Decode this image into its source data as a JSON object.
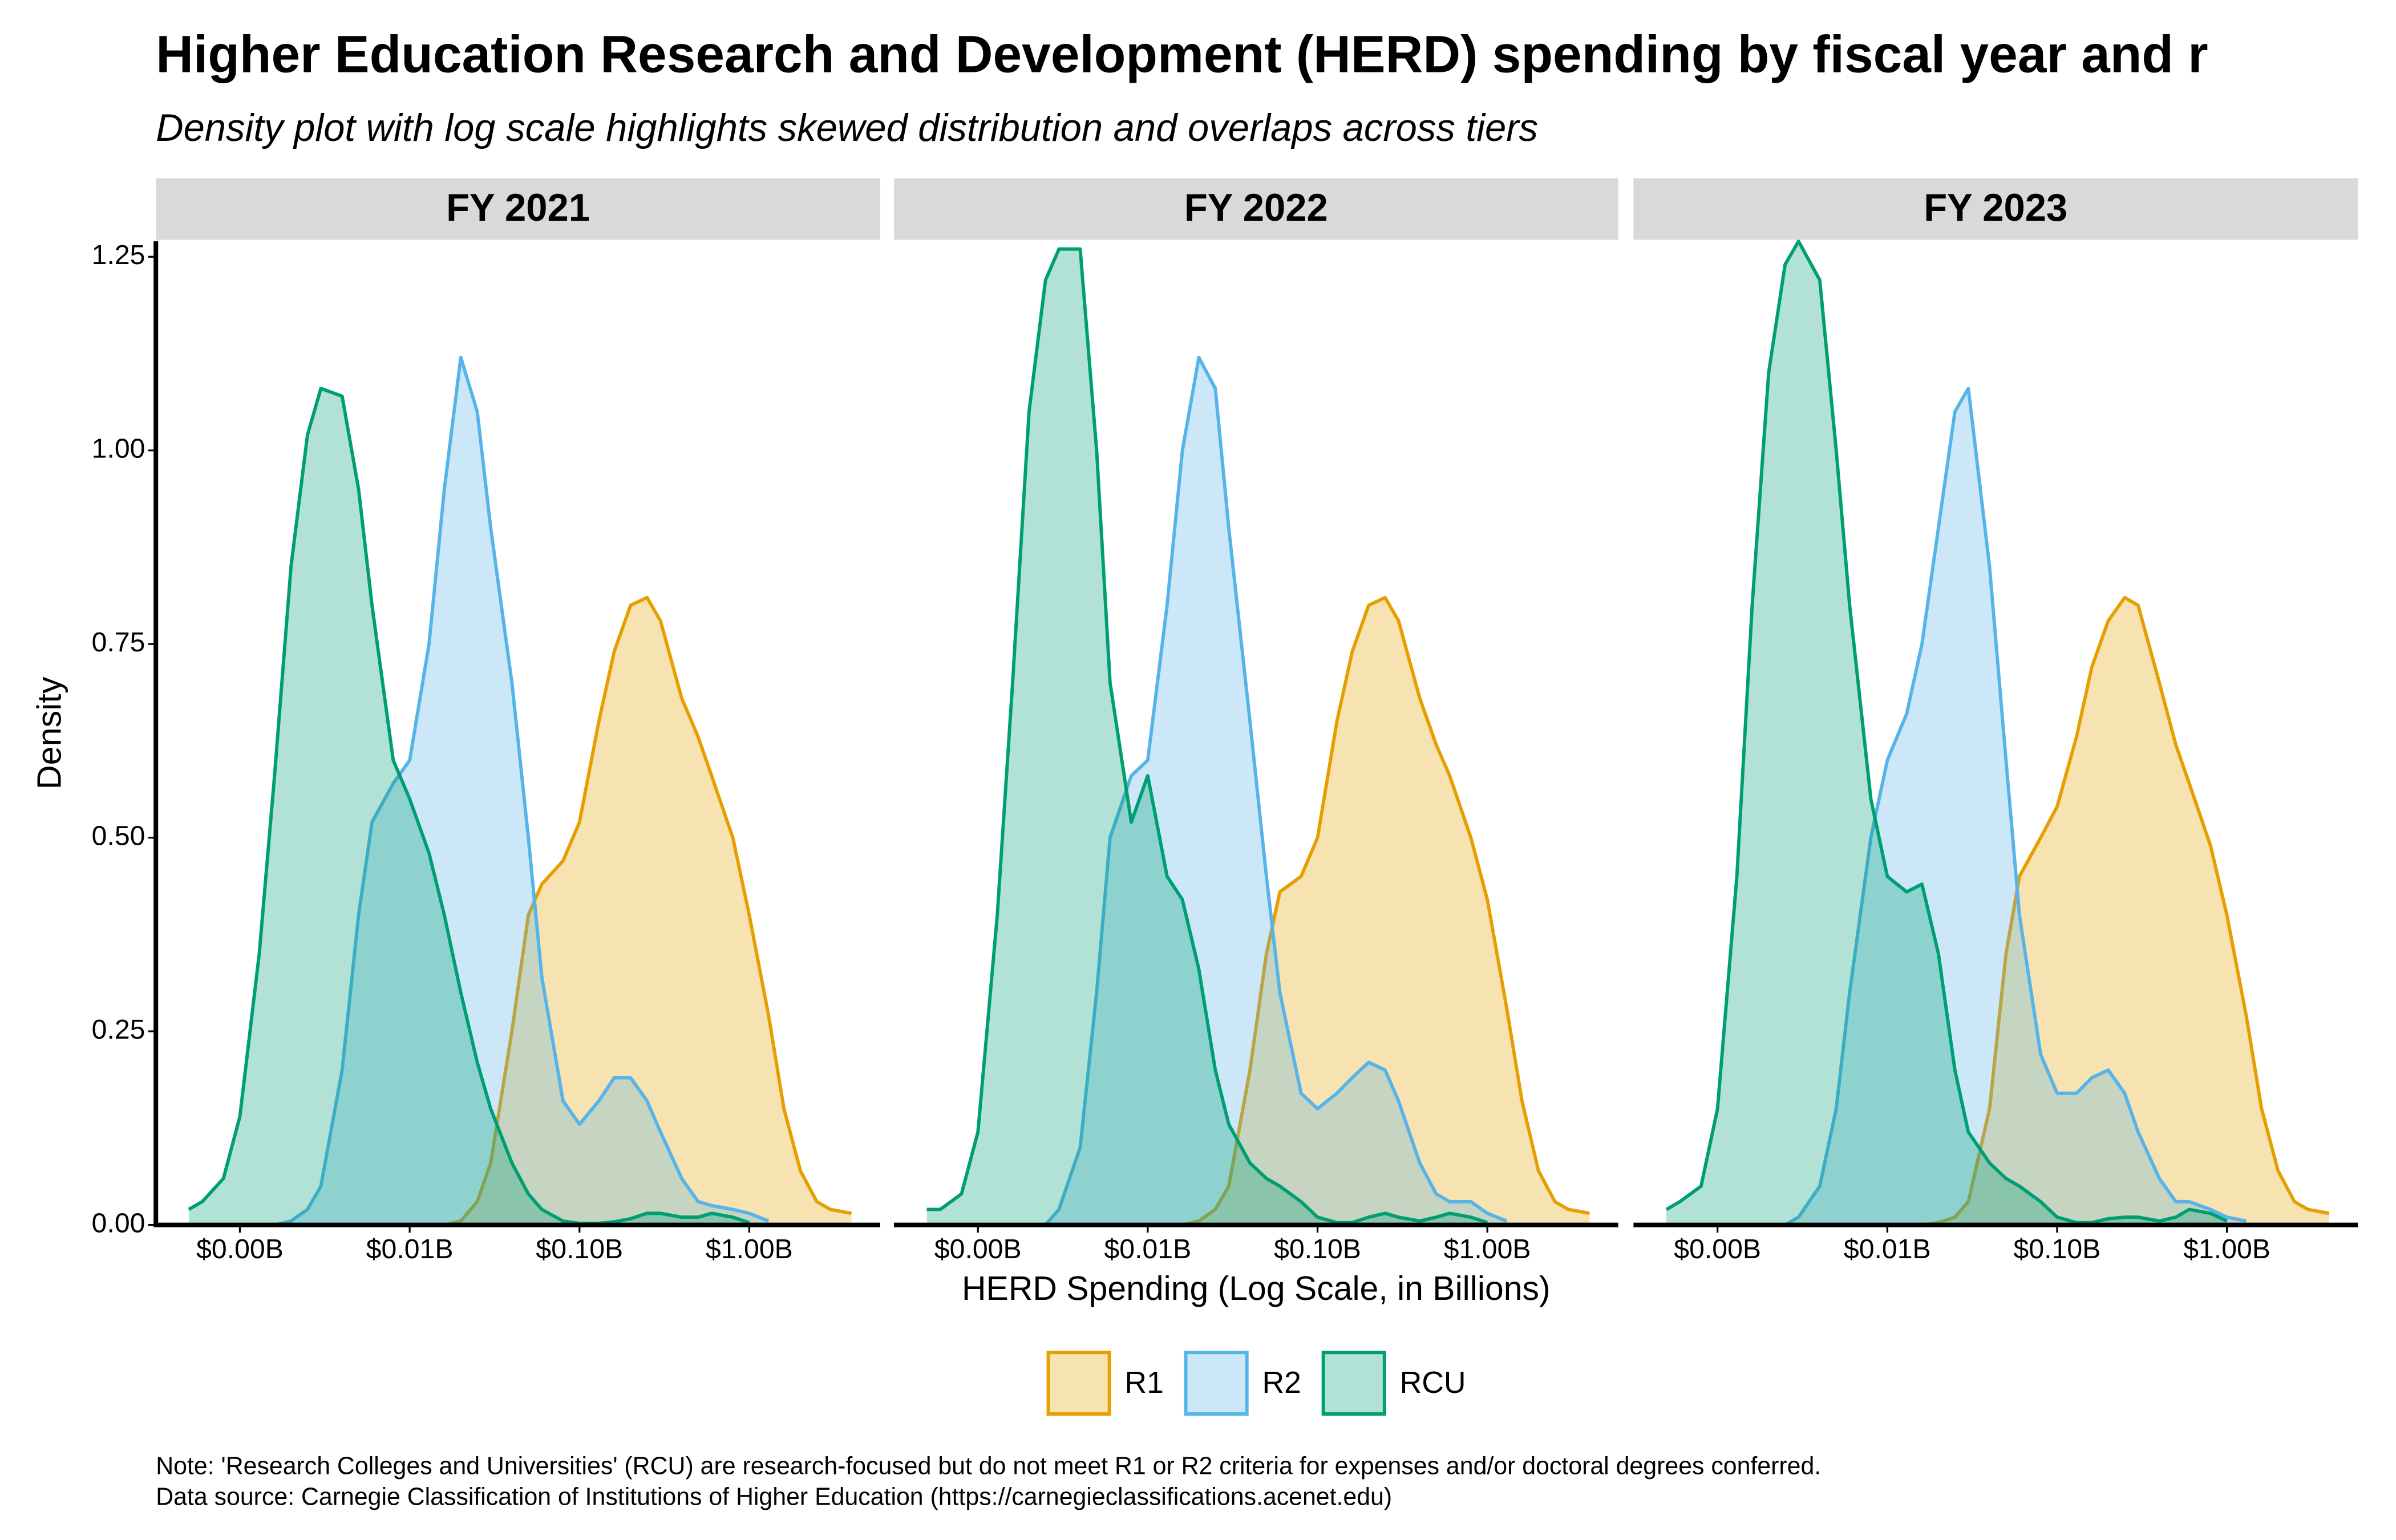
{
  "title": "Higher Education Research and Development (HERD) spending by fiscal year and r",
  "subtitle": "Density plot with log scale highlights skewed distribution and overlaps across tiers",
  "legend": "bottom",
  "notes": [
    "Note: 'Research Colleges and Universities' (RCU) are research-focused but do not meet R1 or R2 criteria for expenses and/or doctoral degrees conferred.",
    "Data source: Carnegie Classification of Institutions of Higher Education (https://carnegieclassifications.acenet.edu)"
  ],
  "chart_data": [
    {
      "type": "density",
      "title": "FY 2021",
      "ylabel": "Density",
      "xscale": "log",
      "fill_opacity": 0.3,
      "x": [
        0.0004,
        0.0005,
        0.0006,
        0.0008,
        0.001,
        0.0013,
        0.0016,
        0.002,
        0.0025,
        0.003,
        0.004,
        0.005,
        0.006,
        0.008,
        0.01,
        0.013,
        0.016,
        0.02,
        0.025,
        0.03,
        0.04,
        0.05,
        0.06,
        0.08,
        0.1,
        0.13,
        0.16,
        0.2,
        0.25,
        0.3,
        0.4,
        0.5,
        0.6,
        0.8,
        1,
        1.3,
        1.6,
        2,
        2.5,
        3,
        4,
        5
      ],
      "series": [
        {
          "name": "R1",
          "color": "#E69F00",
          "values": [
            null,
            null,
            null,
            null,
            null,
            null,
            null,
            null,
            null,
            null,
            null,
            null,
            null,
            null,
            null,
            null,
            0,
            0.005,
            0.03,
            0.08,
            0.25,
            0.4,
            0.44,
            0.47,
            0.52,
            0.65,
            0.74,
            0.8,
            0.81,
            0.78,
            0.68,
            0.63,
            0.58,
            0.5,
            0.4,
            0.27,
            0.15,
            0.07,
            0.03,
            0.02,
            0.015,
            null
          ]
        },
        {
          "name": "R2",
          "color": "#56B4E9",
          "values": [
            null,
            null,
            null,
            null,
            null,
            null,
            0,
            0.005,
            0.02,
            0.05,
            0.2,
            0.4,
            0.52,
            0.57,
            0.6,
            0.75,
            0.95,
            1.12,
            1.05,
            0.9,
            0.7,
            0.5,
            0.32,
            0.16,
            0.13,
            0.16,
            0.19,
            0.19,
            0.16,
            0.12,
            0.06,
            0.03,
            0.025,
            0.02,
            0.015,
            0.005,
            null,
            null,
            null,
            null,
            null,
            null
          ]
        },
        {
          "name": "RCU",
          "color": "#009E73",
          "values": [
            null,
            0.02,
            0.03,
            0.06,
            0.14,
            0.35,
            0.58,
            0.85,
            1.02,
            1.08,
            1.07,
            0.95,
            0.8,
            0.6,
            0.55,
            0.48,
            0.4,
            0.3,
            0.21,
            0.15,
            0.08,
            0.04,
            0.02,
            0.005,
            0.002,
            0.002,
            0.004,
            0.008,
            0.015,
            0.015,
            0.01,
            0.01,
            0.015,
            0.01,
            0.003,
            null,
            null,
            null,
            null,
            null,
            null,
            null
          ]
        }
      ],
      "xlim": [
        0.00032,
        5.9
      ],
      "ylim": [
        0,
        1.27
      ],
      "xticks": [
        {
          "value": 0.001,
          "label": "$0.00B"
        },
        {
          "value": 0.01,
          "label": "$0.01B"
        },
        {
          "value": 0.1,
          "label": "$0.10B"
        },
        {
          "value": 1,
          "label": "$1.00B"
        }
      ],
      "yticks": [
        {
          "value": 0,
          "label": "0.00"
        },
        0.25,
        {
          "value": 0.5,
          "label": "0.50"
        },
        0.75,
        {
          "value": 1,
          "label": "1.00"
        },
        1.25
      ]
    },
    {
      "type": "density",
      "title": "FY 2022",
      "xlabel": "HERD Spending (Log Scale, in Billions)",
      "xscale": "log",
      "fill_opacity": 0.3,
      "x": [
        0.0004,
        0.0005,
        0.0006,
        0.0008,
        0.001,
        0.0013,
        0.0016,
        0.002,
        0.0025,
        0.003,
        0.004,
        0.005,
        0.006,
        0.008,
        0.01,
        0.013,
        0.016,
        0.02,
        0.025,
        0.03,
        0.04,
        0.05,
        0.06,
        0.08,
        0.1,
        0.13,
        0.16,
        0.2,
        0.25,
        0.3,
        0.4,
        0.5,
        0.6,
        0.8,
        1,
        1.3,
        1.6,
        2,
        2.5,
        3,
        4,
        5
      ],
      "series": [
        {
          "name": "R1",
          "color": "#E69F00",
          "values": [
            null,
            null,
            null,
            null,
            null,
            null,
            null,
            null,
            null,
            null,
            null,
            null,
            null,
            null,
            null,
            null,
            0,
            0.005,
            0.02,
            0.05,
            0.2,
            0.35,
            0.43,
            0.45,
            0.5,
            0.65,
            0.74,
            0.8,
            0.81,
            0.78,
            0.68,
            0.62,
            0.58,
            0.5,
            0.42,
            0.28,
            0.16,
            0.07,
            0.03,
            0.02,
            0.015,
            null
          ]
        },
        {
          "name": "R2",
          "color": "#56B4E9",
          "values": [
            null,
            null,
            null,
            null,
            null,
            null,
            null,
            null,
            0,
            0.02,
            0.1,
            0.3,
            0.5,
            0.58,
            0.6,
            0.8,
            1.0,
            1.12,
            1.08,
            0.9,
            0.65,
            0.45,
            0.3,
            0.17,
            0.15,
            0.17,
            0.19,
            0.21,
            0.2,
            0.16,
            0.08,
            0.04,
            0.03,
            0.03,
            0.015,
            0.005,
            null,
            null,
            null,
            null,
            null,
            null
          ]
        },
        {
          "name": "RCU",
          "color": "#009E73",
          "values": [
            null,
            0.02,
            0.02,
            0.04,
            0.12,
            0.4,
            0.7,
            1.05,
            1.22,
            1.26,
            1.26,
            1.0,
            0.7,
            0.52,
            0.58,
            0.45,
            0.42,
            0.33,
            0.2,
            0.13,
            0.08,
            0.06,
            0.05,
            0.03,
            0.01,
            0.003,
            0.003,
            0.01,
            0.015,
            0.01,
            0.005,
            0.01,
            0.015,
            0.01,
            0.003,
            null,
            null,
            null,
            null,
            null,
            null,
            null
          ]
        }
      ],
      "xlim": [
        0.00032,
        5.9
      ],
      "ylim": [
        0,
        1.27
      ],
      "xticks": [
        {
          "value": 0.001,
          "label": "$0.00B"
        },
        {
          "value": 0.01,
          "label": "$0.01B"
        },
        {
          "value": 0.1,
          "label": "$0.10B"
        },
        {
          "value": 1,
          "label": "$1.00B"
        }
      ]
    },
    {
      "type": "density",
      "title": "FY 2023",
      "xscale": "log",
      "fill_opacity": 0.3,
      "x": [
        0.0004,
        0.0005,
        0.0006,
        0.0008,
        0.001,
        0.0013,
        0.0016,
        0.002,
        0.0025,
        0.003,
        0.004,
        0.005,
        0.006,
        0.008,
        0.01,
        0.013,
        0.016,
        0.02,
        0.025,
        0.03,
        0.04,
        0.05,
        0.06,
        0.08,
        0.1,
        0.13,
        0.16,
        0.2,
        0.25,
        0.3,
        0.4,
        0.5,
        0.6,
        0.8,
        1,
        1.3,
        1.6,
        2,
        2.5,
        3,
        4,
        5
      ],
      "series": [
        {
          "name": "R1",
          "color": "#E69F00",
          "values": [
            null,
            null,
            null,
            null,
            null,
            null,
            null,
            null,
            null,
            null,
            null,
            null,
            null,
            null,
            null,
            null,
            0,
            0.003,
            0.01,
            0.03,
            0.15,
            0.35,
            0.45,
            0.5,
            0.54,
            0.63,
            0.72,
            0.78,
            0.81,
            0.8,
            0.7,
            0.62,
            0.57,
            0.49,
            0.4,
            0.27,
            0.15,
            0.07,
            0.03,
            0.02,
            0.015,
            null
          ]
        },
        {
          "name": "R2",
          "color": "#56B4E9",
          "values": [
            null,
            null,
            null,
            null,
            null,
            null,
            null,
            null,
            0,
            0.01,
            0.05,
            0.15,
            0.3,
            0.5,
            0.6,
            0.66,
            0.75,
            0.9,
            1.05,
            1.08,
            0.85,
            0.6,
            0.4,
            0.22,
            0.17,
            0.17,
            0.19,
            0.2,
            0.17,
            0.12,
            0.06,
            0.03,
            0.03,
            0.02,
            0.01,
            0.005,
            null,
            null,
            null,
            null,
            null,
            null
          ]
        },
        {
          "name": "RCU",
          "color": "#009E73",
          "values": [
            null,
            0.02,
            0.03,
            0.05,
            0.15,
            0.45,
            0.8,
            1.1,
            1.24,
            1.27,
            1.22,
            1.0,
            0.8,
            0.55,
            0.45,
            0.43,
            0.44,
            0.35,
            0.2,
            0.12,
            0.08,
            0.06,
            0.05,
            0.03,
            0.01,
            0.003,
            0.003,
            0.008,
            0.01,
            0.01,
            0.005,
            0.01,
            0.02,
            0.015,
            0.005,
            null,
            null,
            null,
            null,
            null,
            null,
            null
          ]
        }
      ],
      "xlim": [
        0.00032,
        5.9
      ],
      "ylim": [
        0,
        1.27
      ],
      "xticks": [
        {
          "value": 0.001,
          "label": "$0.00B"
        },
        {
          "value": 0.01,
          "label": "$0.01B"
        },
        {
          "value": 0.1,
          "label": "$0.10B"
        },
        {
          "value": 1,
          "label": "$1.00B"
        }
      ]
    }
  ]
}
